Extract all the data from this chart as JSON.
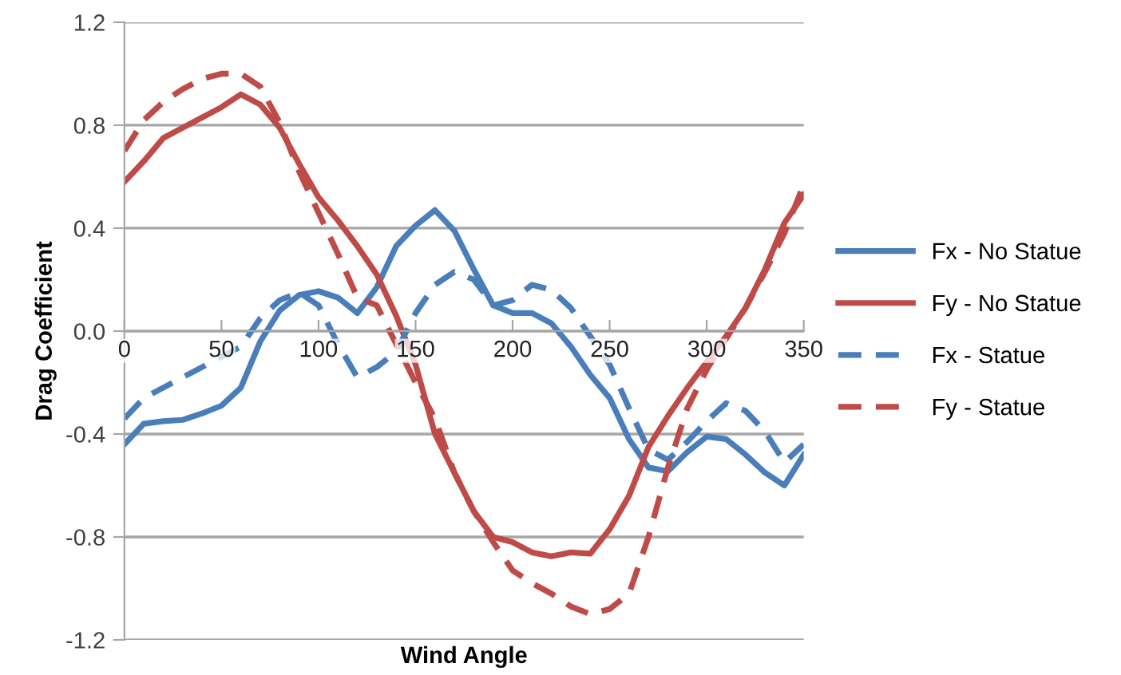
{
  "chart_data": {
    "type": "line",
    "xlabel": "Wind Angle",
    "ylabel": "Drag Coefficient",
    "x": [
      0,
      10,
      20,
      30,
      40,
      50,
      60,
      70,
      80,
      90,
      100,
      110,
      120,
      130,
      140,
      150,
      160,
      170,
      180,
      190,
      200,
      210,
      220,
      230,
      240,
      250,
      260,
      270,
      280,
      290,
      300,
      310,
      320,
      330,
      340,
      350
    ],
    "xlim": [
      0,
      350
    ],
    "xticks": [
      0,
      50,
      100,
      150,
      200,
      250,
      300,
      350
    ],
    "ylim": [
      -1.2,
      1.2
    ],
    "yticks": [
      {
        "value": -1.2,
        "label": "-1.2"
      },
      {
        "value": -0.8,
        "label": "-0.8"
      },
      {
        "value": -0.4,
        "label": "-0.4"
      },
      {
        "value": 0,
        "label": "0.0"
      },
      {
        "value": 0.4,
        "label": "0.4"
      },
      {
        "value": 0.8,
        "label": "0.8"
      },
      {
        "value": 1.2,
        "label": "1.2"
      }
    ],
    "grid": "y",
    "legend": "right",
    "series": [
      {
        "name": "Fx - No Statue",
        "color": "#4a7ebb",
        "line_style": "solid",
        "values": [
          -0.44,
          -0.36,
          -0.35,
          -0.345,
          -0.32,
          -0.29,
          -0.22,
          -0.04,
          0.08,
          0.14,
          0.155,
          0.13,
          0.07,
          0.17,
          0.33,
          0.41,
          0.47,
          0.39,
          0.24,
          0.1,
          0.07,
          0.07,
          0.03,
          -0.06,
          -0.17,
          -0.26,
          -0.42,
          -0.53,
          -0.545,
          -0.47,
          -0.41,
          -0.42,
          -0.48,
          -0.55,
          -0.6,
          -0.48
        ]
      },
      {
        "name": "Fy - No Statue",
        "color": "#be4b48",
        "line_style": "solid",
        "values": [
          0.58,
          0.66,
          0.75,
          0.79,
          0.83,
          0.87,
          0.92,
          0.88,
          0.79,
          0.65,
          0.52,
          0.43,
          0.33,
          0.22,
          0.06,
          -0.13,
          -0.4,
          -0.55,
          -0.7,
          -0.8,
          -0.82,
          -0.86,
          -0.875,
          -0.86,
          -0.865,
          -0.77,
          -0.64,
          -0.45,
          -0.33,
          -0.22,
          -0.12,
          -0.02,
          0.09,
          0.24,
          0.42,
          0.53
        ]
      },
      {
        "name": "Fx - Statue",
        "color": "#4a7ebb",
        "line_style": "dashed",
        "values": [
          -0.34,
          -0.26,
          -0.22,
          -0.18,
          -0.14,
          -0.1,
          -0.06,
          0.05,
          0.12,
          0.15,
          0.1,
          -0.05,
          -0.18,
          -0.14,
          -0.08,
          0.07,
          0.18,
          0.23,
          0.2,
          0.1,
          0.12,
          0.18,
          0.16,
          0.09,
          -0.02,
          -0.13,
          -0.3,
          -0.46,
          -0.5,
          -0.43,
          -0.35,
          -0.28,
          -0.31,
          -0.39,
          -0.51,
          -0.44
        ]
      },
      {
        "name": "Fy - Statue",
        "color": "#be4b48",
        "line_style": "dashed",
        "values": [
          0.7,
          0.82,
          0.89,
          0.94,
          0.98,
          1.0,
          1.0,
          0.95,
          0.81,
          0.62,
          0.46,
          0.3,
          0.13,
          0.1,
          -0.05,
          -0.2,
          -0.34,
          -0.55,
          -0.7,
          -0.82,
          -0.93,
          -0.98,
          -1.02,
          -1.07,
          -1.1,
          -1.08,
          -1.02,
          -0.8,
          -0.53,
          -0.3,
          -0.15,
          -0.03,
          0.09,
          0.23,
          0.38,
          0.57
        ]
      }
    ]
  }
}
